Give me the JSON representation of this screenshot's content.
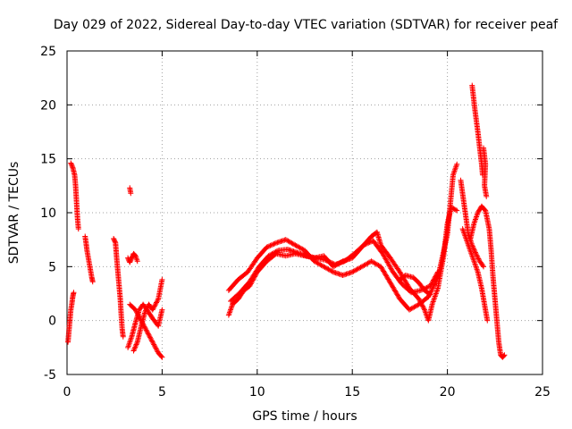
{
  "chart_data": {
    "type": "scatter",
    "title": "Day 029 of 2022, Sidereal Day-to-day VTEC variation (SDTVAR) for receiver peaf",
    "xlabel": "GPS time / hours",
    "ylabel": "SDTVAR / TECUs",
    "xlim": [
      0,
      25
    ],
    "ylim": [
      -5,
      25
    ],
    "xticks": [
      0,
      5,
      10,
      15,
      20,
      25
    ],
    "yticks": [
      -5,
      0,
      5,
      10,
      15,
      20,
      25
    ],
    "grid": true,
    "marker": "+",
    "color": "#ff0000",
    "tracks": [
      [
        [
          0.05,
          -2.0
        ],
        [
          0.1,
          -1.0
        ],
        [
          0.15,
          0.0
        ],
        [
          0.2,
          1.0
        ],
        [
          0.25,
          1.5
        ],
        [
          0.3,
          2.2
        ],
        [
          0.35,
          2.6
        ]
      ],
      [
        [
          0.2,
          14.6
        ],
        [
          0.3,
          14.2
        ],
        [
          0.4,
          13.5
        ],
        [
          0.45,
          12.5
        ],
        [
          0.5,
          11.0
        ],
        [
          0.55,
          9.5
        ],
        [
          0.6,
          8.5
        ]
      ],
      [
        [
          0.95,
          7.8
        ],
        [
          1.0,
          7.2
        ],
        [
          1.05,
          6.5
        ],
        [
          1.1,
          6.0
        ],
        [
          1.15,
          5.5
        ],
        [
          1.2,
          5.0
        ],
        [
          1.25,
          4.5
        ],
        [
          1.3,
          4.0
        ],
        [
          1.35,
          3.6
        ]
      ],
      [
        [
          2.45,
          7.6
        ],
        [
          2.55,
          7.2
        ],
        [
          2.6,
          6.0
        ],
        [
          2.65,
          5.0
        ],
        [
          2.7,
          4.0
        ],
        [
          2.75,
          3.0
        ],
        [
          2.8,
          2.0
        ],
        [
          2.85,
          0.5
        ],
        [
          2.9,
          -0.8
        ],
        [
          2.95,
          -1.5
        ]
      ],
      [
        [
          3.2,
          5.8
        ],
        [
          3.3,
          5.4
        ],
        [
          3.4,
          5.8
        ],
        [
          3.5,
          6.2
        ],
        [
          3.6,
          6.0
        ],
        [
          3.7,
          5.5
        ]
      ],
      [
        [
          3.3,
          12.3
        ],
        [
          3.35,
          11.8
        ]
      ],
      [
        [
          3.2,
          -2.5
        ],
        [
          3.4,
          -1.5
        ],
        [
          3.6,
          -0.2
        ],
        [
          3.8,
          1.0
        ],
        [
          4.0,
          1.5
        ],
        [
          4.2,
          1.0
        ],
        [
          4.5,
          0.2
        ],
        [
          4.8,
          -0.5
        ],
        [
          5.0,
          1.0
        ]
      ],
      [
        [
          3.3,
          1.5
        ],
        [
          3.6,
          1.0
        ],
        [
          3.9,
          0.0
        ],
        [
          4.2,
          -1.0
        ],
        [
          4.5,
          -2.0
        ],
        [
          4.8,
          -3.0
        ],
        [
          5.0,
          -3.4
        ]
      ],
      [
        [
          3.5,
          -2.8
        ],
        [
          3.7,
          -2.0
        ],
        [
          3.9,
          -0.5
        ],
        [
          4.1,
          0.8
        ],
        [
          4.3,
          1.5
        ],
        [
          4.5,
          1.0
        ],
        [
          4.8,
          2.0
        ],
        [
          5.0,
          3.8
        ]
      ],
      [
        [
          8.5,
          0.5
        ],
        [
          8.7,
          1.5
        ],
        [
          9.0,
          2.0
        ],
        [
          9.3,
          2.8
        ],
        [
          9.6,
          3.2
        ],
        [
          10.0,
          4.5
        ],
        [
          10.5,
          5.5
        ],
        [
          11.0,
          6.2
        ],
        [
          11.5,
          6.0
        ],
        [
          12.0,
          6.2
        ],
        [
          12.5,
          6.0
        ],
        [
          13.0,
          5.8
        ],
        [
          13.5,
          6.0
        ],
        [
          14.0,
          5.0
        ],
        [
          14.5,
          5.5
        ],
        [
          15.0,
          5.8
        ],
        [
          15.5,
          6.8
        ],
        [
          16.0,
          7.8
        ],
        [
          16.3,
          8.2
        ],
        [
          16.5,
          7.0
        ],
        [
          17.0,
          5.8
        ],
        [
          17.5,
          4.5
        ],
        [
          18.0,
          3.0
        ],
        [
          18.5,
          2.0
        ],
        [
          18.8,
          1.0
        ],
        [
          19.0,
          0.0
        ],
        [
          19.2,
          1.5
        ],
        [
          19.5,
          3.0
        ],
        [
          19.8,
          6.0
        ],
        [
          20.0,
          9.0
        ],
        [
          20.2,
          10.5
        ],
        [
          20.5,
          10.2
        ]
      ],
      [
        [
          8.5,
          2.8
        ],
        [
          9.0,
          3.8
        ],
        [
          9.5,
          4.5
        ],
        [
          10.0,
          5.8
        ],
        [
          10.5,
          6.8
        ],
        [
          11.0,
          7.2
        ],
        [
          11.5,
          7.5
        ],
        [
          12.0,
          7.0
        ],
        [
          12.5,
          6.5
        ],
        [
          13.0,
          5.5
        ],
        [
          13.5,
          5.0
        ],
        [
          14.0,
          4.5
        ],
        [
          14.5,
          4.2
        ],
        [
          15.0,
          4.5
        ],
        [
          15.5,
          5.0
        ],
        [
          16.0,
          5.5
        ],
        [
          16.5,
          5.0
        ],
        [
          17.0,
          3.5
        ],
        [
          17.5,
          2.0
        ],
        [
          18.0,
          1.0
        ],
        [
          18.5,
          1.5
        ],
        [
          19.0,
          2.2
        ],
        [
          19.5,
          4.0
        ],
        [
          20.0,
          8.0
        ],
        [
          20.3,
          13.5
        ],
        [
          20.5,
          14.5
        ]
      ],
      [
        [
          8.6,
          1.8
        ],
        [
          9.1,
          2.6
        ],
        [
          9.6,
          3.6
        ],
        [
          10.1,
          5.0
        ],
        [
          10.6,
          6.0
        ],
        [
          11.1,
          6.5
        ],
        [
          11.6,
          6.6
        ],
        [
          12.1,
          6.3
        ],
        [
          12.6,
          6.0
        ],
        [
          13.1,
          5.8
        ],
        [
          13.6,
          5.6
        ],
        [
          14.1,
          5.2
        ],
        [
          14.6,
          5.5
        ],
        [
          15.1,
          6.2
        ],
        [
          15.6,
          7.0
        ],
        [
          16.1,
          7.4
        ],
        [
          16.6,
          6.2
        ],
        [
          17.1,
          4.6
        ],
        [
          17.6,
          3.4
        ],
        [
          18.1,
          2.6
        ],
        [
          18.6,
          2.8
        ],
        [
          19.1,
          3.2
        ],
        [
          19.5,
          4.5
        ]
      ],
      [
        [
          17.5,
          3.8
        ],
        [
          17.8,
          4.2
        ],
        [
          18.2,
          4.0
        ],
        [
          18.5,
          3.5
        ],
        [
          18.8,
          2.8
        ],
        [
          19.1,
          2.4
        ]
      ],
      [
        [
          20.7,
          13.0
        ],
        [
          20.9,
          10.5
        ],
        [
          21.1,
          8.0
        ],
        [
          21.3,
          7.0
        ],
        [
          21.5,
          6.2
        ],
        [
          21.7,
          5.5
        ],
        [
          21.9,
          5.0
        ]
      ],
      [
        [
          20.8,
          8.5
        ],
        [
          21.0,
          7.5
        ],
        [
          21.2,
          6.5
        ],
        [
          21.4,
          5.5
        ],
        [
          21.6,
          4.5
        ],
        [
          21.8,
          3.0
        ],
        [
          22.0,
          1.0
        ],
        [
          22.1,
          0.0
        ]
      ],
      [
        [
          21.3,
          21.8
        ],
        [
          21.45,
          19.5
        ],
        [
          21.6,
          17.5
        ],
        [
          21.7,
          16.0
        ],
        [
          21.8,
          14.5
        ],
        [
          21.85,
          13.5
        ]
      ],
      [
        [
          21.2,
          7.5
        ],
        [
          21.4,
          9.0
        ],
        [
          21.6,
          10.0
        ],
        [
          21.8,
          10.6
        ],
        [
          22.0,
          10.2
        ],
        [
          22.2,
          8.5
        ],
        [
          22.3,
          6.5
        ],
        [
          22.4,
          4.0
        ],
        [
          22.5,
          2.0
        ],
        [
          22.6,
          0.0
        ],
        [
          22.7,
          -2.0
        ],
        [
          22.8,
          -3.2
        ],
        [
          22.9,
          -3.4
        ],
        [
          23.0,
          -3.2
        ]
      ],
      [
        [
          21.9,
          16.0
        ],
        [
          22.0,
          14.5
        ],
        [
          21.95,
          12.5
        ],
        [
          22.05,
          11.5
        ]
      ]
    ]
  }
}
